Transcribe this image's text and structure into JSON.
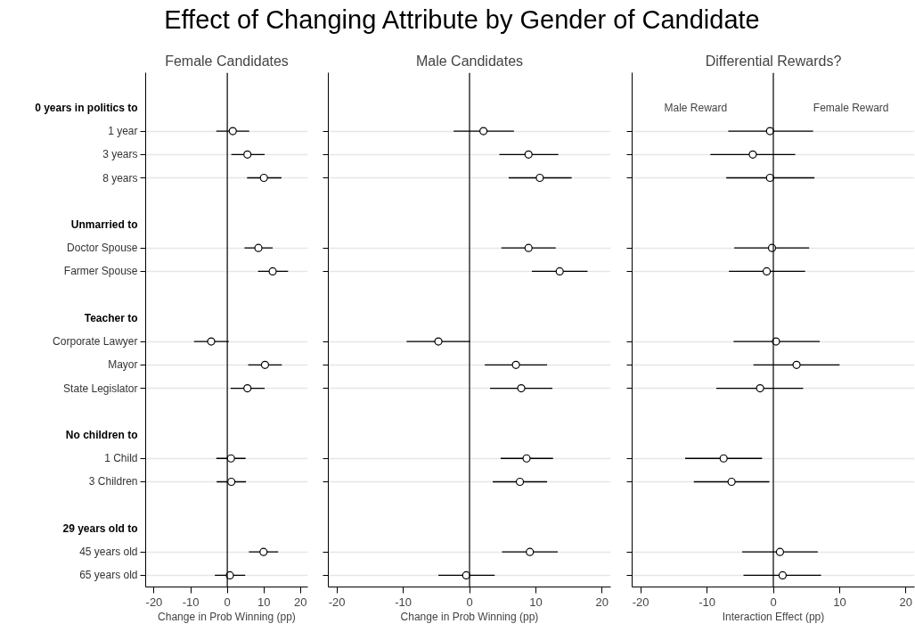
{
  "chart_data": [
    {
      "type": "scatter",
      "orientation": "horizontal",
      "title": "Effect of Changing Attribute by Gender of Candidate",
      "subtitle": "Female Candidates",
      "xlabel": "Change in Prob Winning (pp)",
      "categories": [
        "0 years in politics to",
        "1 year",
        "3 years",
        "8 years",
        null,
        "Unmarried to",
        "Doctor Spouse",
        "Farmer Spouse",
        null,
        "Teacher to",
        "Corporate Lawyer",
        "Mayor",
        "State Legislator",
        null,
        "No children to",
        "1 Child",
        "3 Children",
        null,
        "29 years old to",
        "45 years old",
        "65 years old"
      ],
      "series": [
        {
          "color": "#000000",
          "values": [
            null,
            1.5,
            5.5,
            10.0,
            null,
            null,
            8.5,
            12.4,
            null,
            null,
            -4.4,
            10.3,
            5.5,
            null,
            null,
            1.0,
            1.1,
            null,
            null,
            9.9,
            0.7
          ],
          "errors": [
            null,
            [
              -3.0,
              6.0
            ],
            [
              1.1,
              10.2
            ],
            [
              5.4,
              14.8
            ],
            null,
            null,
            [
              4.7,
              12.4
            ],
            [
              8.4,
              16.6
            ],
            null,
            null,
            [
              -9.1,
              0.4
            ],
            [
              5.7,
              14.9
            ],
            [
              0.9,
              10.2
            ],
            null,
            null,
            [
              -3.0,
              5.0
            ],
            [
              -2.9,
              5.1
            ],
            null,
            null,
            [
              5.9,
              13.9
            ],
            [
              -3.4,
              4.9
            ]
          ]
        }
      ],
      "xlim": [
        -22.3,
        22
      ],
      "xticks": [
        -20,
        -10,
        0,
        10,
        20
      ],
      "ref_lines": [
        {
          "axis": "x",
          "value": 0,
          "color": "#000000"
        }
      ],
      "grid": "y",
      "marker": "circle"
    },
    {
      "type": "scatter",
      "orientation": "horizontal",
      "subtitle": "Male Candidates",
      "xlabel": "Change in Prob Winning (pp)",
      "series": [
        {
          "color": "#000000",
          "values": [
            null,
            2.1,
            8.9,
            10.6,
            null,
            null,
            8.9,
            13.6,
            null,
            null,
            -4.7,
            7.0,
            7.8,
            null,
            null,
            8.6,
            7.6,
            null,
            null,
            9.1,
            -0.5
          ],
          "errors": [
            null,
            [
              -2.4,
              6.7
            ],
            [
              4.5,
              13.4
            ],
            [
              5.9,
              15.4
            ],
            null,
            null,
            [
              4.8,
              13.0
            ],
            [
              9.4,
              17.8
            ],
            null,
            null,
            [
              -9.5,
              0.1
            ],
            [
              2.3,
              11.7
            ],
            [
              3.1,
              12.5
            ],
            null,
            null,
            [
              4.7,
              12.6
            ],
            [
              3.5,
              11.7
            ],
            null,
            null,
            [
              4.9,
              13.3
            ],
            [
              -4.7,
              3.8
            ]
          ]
        }
      ],
      "xlim": [
        -21.3,
        21.3
      ],
      "xticks": [
        -20,
        -10,
        0,
        10,
        20
      ],
      "ref_lines": [
        {
          "axis": "x",
          "value": 0,
          "color": "#000000"
        }
      ],
      "grid": "y",
      "marker": "circle",
      "tick_labels": "x"
    },
    {
      "type": "scatter",
      "orientation": "horizontal",
      "subtitle": "Differential Rewards?",
      "xlabel": "Interaction Effect (pp)",
      "annotations": [
        "Male Reward",
        "Female Reward"
      ],
      "series": [
        {
          "color": "#000000",
          "values": [
            null,
            -0.5,
            -3.1,
            -0.5,
            null,
            null,
            -0.2,
            -1.0,
            null,
            null,
            0.4,
            3.5,
            -2.0,
            null,
            null,
            -7.5,
            -6.3,
            null,
            null,
            1.0,
            1.4
          ],
          "errors": [
            null,
            [
              -6.8,
              6.0
            ],
            [
              -9.5,
              3.3
            ],
            [
              -7.1,
              6.2
            ],
            null,
            null,
            [
              -5.9,
              5.4
            ],
            [
              -6.7,
              4.8
            ],
            null,
            null,
            [
              -6.0,
              7.0
            ],
            [
              -3.0,
              10.0
            ],
            [
              -8.6,
              4.5
            ],
            null,
            null,
            [
              -13.3,
              -1.7
            ],
            [
              -12.0,
              -0.6
            ],
            null,
            null,
            [
              -4.7,
              6.7
            ],
            [
              -4.5,
              7.2
            ]
          ]
        }
      ],
      "xlim": [
        -21.3,
        21.3
      ],
      "xticks": [
        -20,
        -10,
        0,
        10,
        20
      ],
      "ref_lines": [
        {
          "axis": "x",
          "value": 0,
          "color": "#000000"
        }
      ],
      "grid": "y",
      "marker": "circle",
      "tick_labels": "x"
    }
  ]
}
